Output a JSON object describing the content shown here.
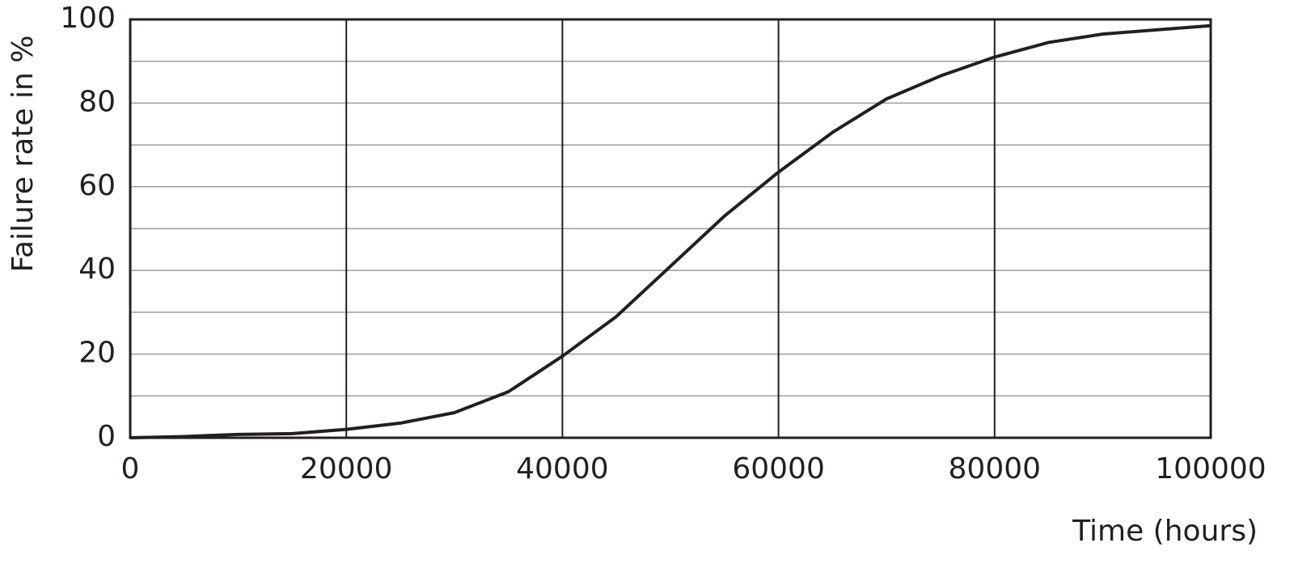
{
  "chart_data": {
    "type": "line",
    "x_label": "Time (hours)",
    "y_label": "Failure rate in %",
    "x": [
      0,
      5000,
      10000,
      15000,
      20000,
      25000,
      30000,
      35000,
      40000,
      45000,
      50000,
      55000,
      60000,
      65000,
      70000,
      75000,
      80000,
      85000,
      90000,
      95000,
      100000
    ],
    "series": [
      {
        "color": "#231f20",
        "values": [
          0,
          0.3,
          0.8,
          1.0,
          2,
          3.5,
          6,
          11,
          19.5,
          29,
          41,
          53,
          63.5,
          73,
          81,
          86.5,
          91,
          94.5,
          96.5,
          97.5,
          98.5
        ]
      }
    ],
    "xlim": [
      0,
      100000
    ],
    "xticks": [
      0,
      20000,
      40000,
      60000,
      80000,
      100000
    ],
    "ylim": [
      0,
      100
    ],
    "yticks": [
      0,
      20,
      40,
      60,
      80,
      100
    ],
    "y_minor_gridlines": [
      10,
      30,
      50,
      70,
      90
    ],
    "grid": true
  }
}
